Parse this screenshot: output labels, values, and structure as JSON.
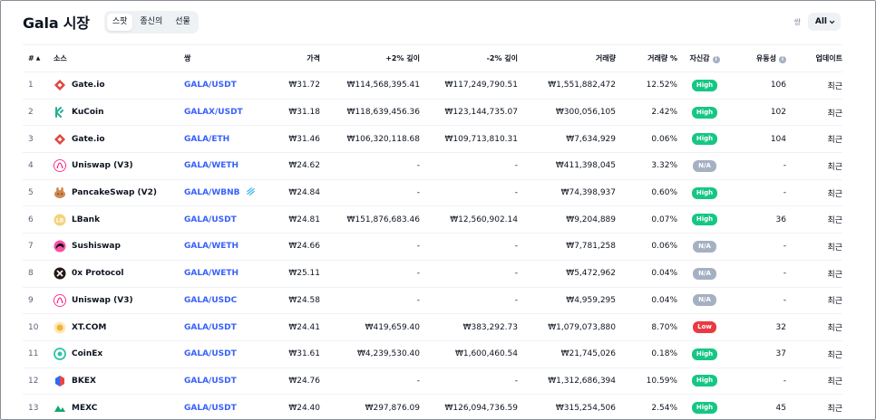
{
  "header": {
    "title": "Gala 시장",
    "tabs": [
      {
        "label": "스팟",
        "active": true
      },
      {
        "label": "종신의",
        "active": false
      },
      {
        "label": "선물",
        "active": false
      }
    ],
    "pair_label": "쌍",
    "pair_filter": "All"
  },
  "table": {
    "columns": {
      "rank": "#",
      "source": "소스",
      "pair": "쌍",
      "price": "가격",
      "plus2": "+2% 깊이",
      "minus2": "-2% 깊이",
      "volume": "거래량",
      "volume_pct": "거래량 %",
      "confidence": "자신감",
      "liquidity": "유동성",
      "updated": "업데이트"
    },
    "rows": [
      {
        "rank": "1",
        "source": "Gate.io",
        "logo": "gateio-logo-icon",
        "pair": "GALA/USDT",
        "price": "₩31.72",
        "plus2": "₩114,568,395.41",
        "minus2": "₩117,249,790.51",
        "volume": "₩1,551,882,472",
        "volume_pct": "12.52%",
        "confidence": "High",
        "liquidity": "106",
        "updated": "최근"
      },
      {
        "rank": "2",
        "source": "KuCoin",
        "logo": "kucoin-logo-icon",
        "pair": "GALAX/USDT",
        "price": "₩31.18",
        "plus2": "₩118,639,456.36",
        "minus2": "₩123,144,735.07",
        "volume": "₩300,056,105",
        "volume_pct": "2.42%",
        "confidence": "High",
        "liquidity": "102",
        "updated": "최근"
      },
      {
        "rank": "3",
        "source": "Gate.io",
        "logo": "gateio-logo-icon",
        "pair": "GALA/ETH",
        "price": "₩31.46",
        "plus2": "₩106,320,118.68",
        "minus2": "₩109,713,810.31",
        "volume": "₩7,634,929",
        "volume_pct": "0.06%",
        "confidence": "High",
        "liquidity": "104",
        "updated": "최근"
      },
      {
        "rank": "4",
        "source": "Uniswap (V3)",
        "logo": "uniswap-logo-icon",
        "pair": "GALA/WETH",
        "price": "₩24.62",
        "plus2": "-",
        "minus2": "-",
        "volume": "₩411,398,045",
        "volume_pct": "3.32%",
        "confidence": "N/A",
        "liquidity": "-",
        "updated": "최근"
      },
      {
        "rank": "5",
        "source": "PancakeSwap (V2)",
        "logo": "pancakeswap-logo-icon",
        "pair": "GALA/WBNB",
        "pair_icon": true,
        "price": "₩24.84",
        "plus2": "-",
        "minus2": "-",
        "volume": "₩74,398,937",
        "volume_pct": "0.60%",
        "confidence": "High",
        "liquidity": "-",
        "updated": "최근"
      },
      {
        "rank": "6",
        "source": "LBank",
        "logo": "lbank-logo-icon",
        "pair": "GALA/USDT",
        "price": "₩24.81",
        "plus2": "₩151,876,683.46",
        "minus2": "₩12,560,902.14",
        "volume": "₩9,204,889",
        "volume_pct": "0.07%",
        "confidence": "High",
        "liquidity": "36",
        "updated": "최근"
      },
      {
        "rank": "7",
        "source": "Sushiswap",
        "logo": "sushiswap-logo-icon",
        "pair": "GALA/WETH",
        "price": "₩24.66",
        "plus2": "-",
        "minus2": "-",
        "volume": "₩7,781,258",
        "volume_pct": "0.06%",
        "confidence": "N/A",
        "liquidity": "-",
        "updated": "최근"
      },
      {
        "rank": "8",
        "source": "0x Protocol",
        "logo": "0x-protocol-logo-icon",
        "pair": "GALA/WETH",
        "price": "₩25.11",
        "plus2": "-",
        "minus2": "-",
        "volume": "₩5,472,962",
        "volume_pct": "0.04%",
        "confidence": "N/A",
        "liquidity": "-",
        "updated": "최근"
      },
      {
        "rank": "9",
        "source": "Uniswap (V3)",
        "logo": "uniswap-logo-icon",
        "pair": "GALA/USDC",
        "price": "₩24.58",
        "plus2": "-",
        "minus2": "-",
        "volume": "₩4,959,295",
        "volume_pct": "0.04%",
        "confidence": "N/A",
        "liquidity": "-",
        "updated": "최근"
      },
      {
        "rank": "10",
        "source": "XT.COM",
        "logo": "xtcom-logo-icon",
        "pair": "GALA/USDT",
        "price": "₩24.41",
        "plus2": "₩419,659.40",
        "minus2": "₩383,292.73",
        "volume": "₩1,079,073,880",
        "volume_pct": "8.70%",
        "confidence": "Low",
        "liquidity": "32",
        "updated": "최근"
      },
      {
        "rank": "11",
        "source": "CoinEx",
        "logo": "coinex-logo-icon",
        "pair": "GALA/USDT",
        "price": "₩31.61",
        "plus2": "₩4,239,530.40",
        "minus2": "₩1,600,460.54",
        "volume": "₩21,745,026",
        "volume_pct": "0.18%",
        "confidence": "High",
        "liquidity": "37",
        "updated": "최근"
      },
      {
        "rank": "12",
        "source": "BKEX",
        "logo": "bkex-logo-icon",
        "pair": "GALA/USDT",
        "price": "₩24.76",
        "plus2": "-",
        "minus2": "-",
        "volume": "₩1,312,686,394",
        "volume_pct": "10.59%",
        "confidence": "High",
        "liquidity": "-",
        "updated": "최근"
      },
      {
        "rank": "13",
        "source": "MEXC",
        "logo": "mexc-logo-icon",
        "pair": "GALA/USDT",
        "price": "₩24.40",
        "plus2": "₩297,876.09",
        "minus2": "₩126,094,736.59",
        "volume": "₩315,254,506",
        "volume_pct": "2.54%",
        "confidence": "High",
        "liquidity": "45",
        "updated": "최근"
      }
    ]
  },
  "colors": {
    "high": "#16c784",
    "low": "#ea3943",
    "na": "#a6b0c3",
    "pair_link": "#3861fb"
  }
}
